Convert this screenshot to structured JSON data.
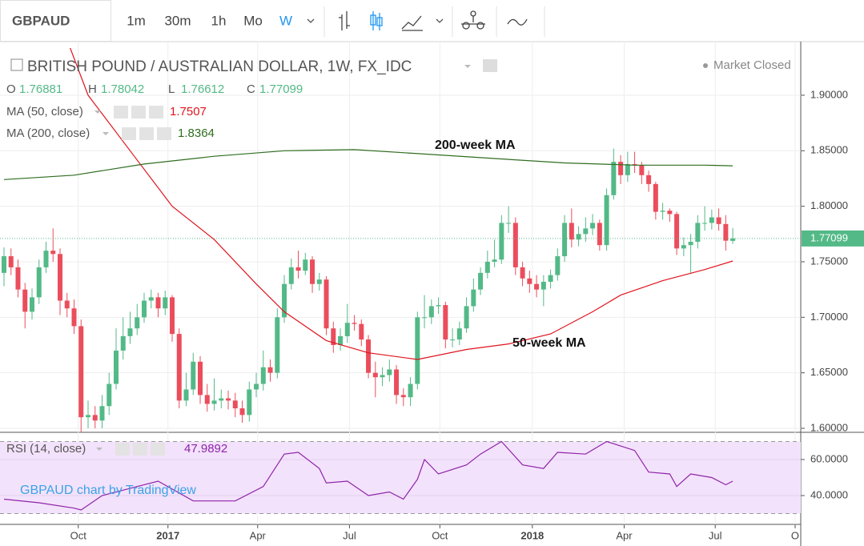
{
  "toolbar": {
    "symbol": "GBPAUD",
    "intervals": [
      "1m",
      "30m",
      "1h",
      "Mo",
      "W"
    ],
    "active_interval": "W"
  },
  "chart_data": [
    {
      "type": "candlestick",
      "title": "BRITISH POUND / AUSTRALIAN DOLLAR, 1W, FX_IDC",
      "status": "Market Closed",
      "ohlc_labels": [
        "O",
        "H",
        "L",
        "C"
      ],
      "up_color": "#53b987",
      "down_color": "#eb4d5c",
      "open": [
        1.74,
        1.755,
        1.745,
        1.725,
        1.705,
        1.718,
        1.745,
        1.76,
        1.757,
        1.715,
        1.708,
        1.692,
        1.61,
        1.612,
        1.607,
        1.62,
        1.64,
        1.67,
        1.683,
        1.69,
        1.7,
        1.715,
        1.718,
        1.708,
        1.718,
        1.685,
        1.625,
        1.635,
        1.66,
        1.63,
        1.622,
        1.625,
        1.627,
        1.625,
        1.618,
        1.612,
        1.635,
        1.64,
        1.655,
        1.65,
        1.7,
        1.73,
        1.745,
        1.742,
        1.752,
        1.73,
        1.734,
        1.69,
        1.675,
        1.683,
        1.695,
        1.694,
        1.68,
        1.65,
        1.646,
        1.648,
        1.653,
        1.63,
        1.628,
        1.64,
        1.7,
        1.7,
        1.71,
        1.711,
        1.68,
        1.68,
        1.69,
        1.71,
        1.725,
        1.74,
        1.75,
        1.752,
        1.785,
        1.785,
        1.745,
        1.735,
        1.73,
        1.725,
        1.732,
        1.738,
        1.755,
        1.785,
        1.77,
        1.775,
        1.78,
        1.785,
        1.765,
        1.81,
        1.84,
        1.828,
        1.838,
        1.837,
        1.828,
        1.82,
        1.795,
        1.796,
        1.793,
        1.762,
        1.765,
        1.768,
        1.785,
        1.785,
        1.79,
        1.784,
        1.76881
      ],
      "high": [
        1.763,
        1.762,
        1.752,
        1.731,
        1.726,
        1.752,
        1.768,
        1.78,
        1.762,
        1.722,
        1.716,
        1.698,
        1.625,
        1.62,
        1.63,
        1.65,
        1.69,
        1.7,
        1.705,
        1.712,
        1.722,
        1.725,
        1.722,
        1.724,
        1.72,
        1.69,
        1.65,
        1.668,
        1.665,
        1.64,
        1.645,
        1.635,
        1.634,
        1.632,
        1.625,
        1.642,
        1.65,
        1.67,
        1.662,
        1.708,
        1.738,
        1.753,
        1.76,
        1.758,
        1.755,
        1.74,
        1.737,
        1.696,
        1.69,
        1.712,
        1.702,
        1.698,
        1.684,
        1.66,
        1.655,
        1.662,
        1.657,
        1.636,
        1.646,
        1.705,
        1.72,
        1.716,
        1.718,
        1.714,
        1.69,
        1.696,
        1.718,
        1.735,
        1.745,
        1.76,
        1.77,
        1.792,
        1.8,
        1.79,
        1.75,
        1.742,
        1.738,
        1.738,
        1.743,
        1.762,
        1.792,
        1.798,
        1.782,
        1.79,
        1.793,
        1.788,
        1.816,
        1.852,
        1.846,
        1.849,
        1.849,
        1.84,
        1.832,
        1.822,
        1.803,
        1.798,
        1.795,
        1.772,
        1.775,
        1.792,
        1.8,
        1.797,
        1.798,
        1.792,
        1.78042
      ],
      "low": [
        1.728,
        1.738,
        1.718,
        1.69,
        1.698,
        1.712,
        1.74,
        1.75,
        1.702,
        1.7,
        1.685,
        1.595,
        1.6,
        1.6,
        1.6,
        1.612,
        1.635,
        1.662,
        1.676,
        1.684,
        1.695,
        1.708,
        1.7,
        1.702,
        1.678,
        1.618,
        1.62,
        1.63,
        1.622,
        1.615,
        1.616,
        1.618,
        1.617,
        1.61,
        1.605,
        1.606,
        1.628,
        1.634,
        1.642,
        1.645,
        1.695,
        1.725,
        1.735,
        1.738,
        1.722,
        1.724,
        1.684,
        1.668,
        1.67,
        1.677,
        1.688,
        1.674,
        1.645,
        1.628,
        1.638,
        1.642,
        1.622,
        1.62,
        1.62,
        1.635,
        1.69,
        1.694,
        1.703,
        1.672,
        1.673,
        1.675,
        1.686,
        1.705,
        1.72,
        1.735,
        1.745,
        1.748,
        1.776,
        1.738,
        1.728,
        1.722,
        1.718,
        1.71,
        1.726,
        1.733,
        1.75,
        1.763,
        1.764,
        1.768,
        1.774,
        1.76,
        1.76,
        1.806,
        1.82,
        1.822,
        1.83,
        1.82,
        1.813,
        1.788,
        1.788,
        1.786,
        1.756,
        1.755,
        1.74,
        1.762,
        1.778,
        1.779,
        1.778,
        1.76,
        1.76612
      ],
      "close": [
        1.755,
        1.745,
        1.725,
        1.705,
        1.718,
        1.745,
        1.76,
        1.757,
        1.715,
        1.708,
        1.692,
        1.61,
        1.612,
        1.607,
        1.62,
        1.64,
        1.67,
        1.683,
        1.69,
        1.7,
        1.715,
        1.718,
        1.708,
        1.718,
        1.685,
        1.625,
        1.635,
        1.66,
        1.63,
        1.622,
        1.625,
        1.627,
        1.625,
        1.618,
        1.612,
        1.635,
        1.64,
        1.655,
        1.65,
        1.7,
        1.73,
        1.745,
        1.742,
        1.752,
        1.73,
        1.734,
        1.69,
        1.675,
        1.683,
        1.695,
        1.694,
        1.68,
        1.65,
        1.646,
        1.648,
        1.653,
        1.63,
        1.628,
        1.64,
        1.7,
        1.7,
        1.71,
        1.711,
        1.68,
        1.68,
        1.69,
        1.71,
        1.725,
        1.74,
        1.75,
        1.752,
        1.785,
        1.785,
        1.745,
        1.735,
        1.73,
        1.725,
        1.732,
        1.738,
        1.755,
        1.785,
        1.77,
        1.775,
        1.78,
        1.785,
        1.765,
        1.81,
        1.84,
        1.828,
        1.838,
        1.837,
        1.828,
        1.82,
        1.795,
        1.796,
        1.793,
        1.762,
        1.765,
        1.768,
        1.785,
        1.785,
        1.79,
        1.784,
        1.769,
        1.77099
      ],
      "overlays": [
        {
          "name": "MA (50, close)",
          "color": "#e0141e",
          "x": [
            9,
            12,
            18,
            24,
            30,
            36,
            40,
            46,
            52,
            59,
            66,
            72,
            78,
            84,
            88,
            94,
            100,
            104
          ],
          "values": [
            1.95,
            1.9,
            1.85,
            1.8,
            1.77,
            1.73,
            1.705,
            1.679,
            1.668,
            1.662,
            1.671,
            1.676,
            1.685,
            1.705,
            1.72,
            1.733,
            1.743,
            1.7507
          ]
        },
        {
          "name": "MA (200, close)",
          "color": "#2f6d1f",
          "x": [
            0,
            10,
            20,
            30,
            40,
            50,
            60,
            70,
            80,
            90,
            100,
            104
          ],
          "values": [
            1.824,
            1.828,
            1.838,
            1.845,
            1.85,
            1.851,
            1.847,
            1.843,
            1.839,
            1.837,
            1.837,
            1.8364
          ]
        }
      ],
      "annotations": [
        "200-week MA",
        "50-week MA"
      ],
      "watermark": "GBPAUD chart by TradingView",
      "xlim": [
        -0.57,
        113.7
      ],
      "xticks": [
        {
          "value": 10.6,
          "label": "Oct"
        },
        {
          "value": 23.4,
          "label": "2017"
        },
        {
          "value": 36.2,
          "label": "Apr"
        },
        {
          "value": 49.3,
          "label": "Jul"
        },
        {
          "value": 62.2,
          "label": "Oct"
        },
        {
          "value": 75.4,
          "label": "2018"
        },
        {
          "value": 88.5,
          "label": "Apr"
        },
        {
          "value": 101.5,
          "label": "Jul"
        },
        {
          "value": 112.9,
          "label": "O"
        }
      ],
      "ylim": [
        1.5964,
        1.9425
      ],
      "yticks": [
        {
          "value": 1.9,
          "label": "1.90000"
        },
        {
          "value": 1.85,
          "label": "1.85000"
        },
        {
          "value": 1.8,
          "label": "1.80000"
        },
        {
          "value": 1.75,
          "label": "1.75000"
        },
        {
          "value": 1.7,
          "label": "1.70000"
        },
        {
          "value": 1.65,
          "label": "1.65000"
        },
        {
          "value": 1.6,
          "label": "1.60000"
        }
      ],
      "grid": true
    },
    {
      "type": "line",
      "title": "RSI (14, close)",
      "color": "#8e24aa",
      "band": [
        30,
        70
      ],
      "band_color": "#f3e2fb",
      "x": [
        0,
        5,
        10,
        11,
        14,
        19,
        22,
        27,
        33,
        37,
        40,
        42,
        45,
        46,
        49,
        52,
        55,
        57,
        59,
        60,
        62,
        66,
        68,
        71,
        74,
        77,
        79,
        83,
        86,
        90,
        92,
        95,
        96,
        98,
        101,
        103,
        104
      ],
      "values": [
        38,
        36,
        33,
        32,
        40,
        45,
        48,
        37,
        37,
        45,
        63,
        64,
        55,
        47,
        48,
        40,
        42,
        38,
        49,
        60,
        52,
        57,
        63,
        70,
        57,
        55,
        64,
        63,
        70,
        65,
        53,
        52,
        45,
        52,
        50,
        46,
        47.9892
      ],
      "ylim": [
        24,
        75.1
      ],
      "yticks": [
        {
          "value": 60,
          "label": "60.0000"
        },
        {
          "value": 40,
          "label": "40.0000"
        }
      ]
    }
  ]
}
